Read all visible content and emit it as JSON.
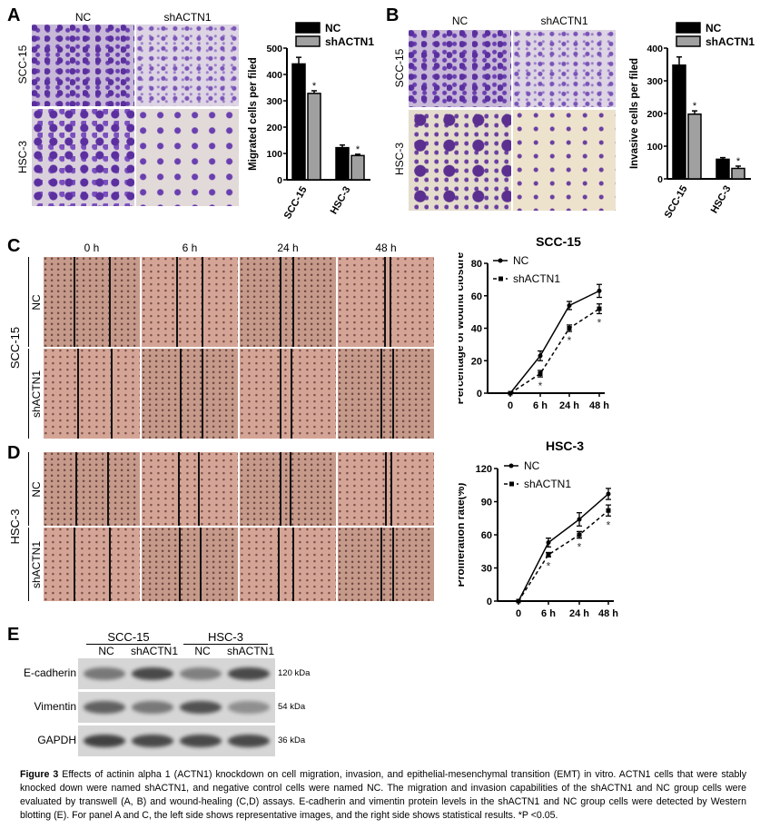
{
  "panels": {
    "A": "A",
    "B": "B",
    "C": "C",
    "D": "D",
    "E": "E"
  },
  "transwell": {
    "col_headers": [
      "NC",
      "shACTN1"
    ],
    "row_labels": [
      "SCC-15",
      "HSC-3"
    ]
  },
  "wound": {
    "time_headers": [
      "0 h",
      "6 h",
      "24 h",
      "48 h"
    ],
    "group_labels": [
      "NC",
      "shACTN1"
    ],
    "cell_lines": [
      "SCC-15",
      "HSC-3"
    ]
  },
  "blot": {
    "cell_lines": [
      "SCC-15",
      "HSC-3"
    ],
    "lanes": [
      "NC",
      "shACTN1",
      "NC",
      "shACTN1"
    ],
    "proteins": [
      {
        "name": "E-cadherin",
        "size": "120 kDa",
        "intensity": [
          0.6,
          0.9,
          0.55,
          0.9
        ]
      },
      {
        "name": "Vimentin",
        "size": "54 kDa",
        "intensity": [
          0.75,
          0.6,
          0.85,
          0.45
        ]
      },
      {
        "name": "GAPDH",
        "size": "36 kDa",
        "intensity": [
          0.95,
          0.9,
          0.9,
          0.9
        ]
      }
    ]
  },
  "caption": {
    "fig": "Figure 3",
    "text": " Effects of actinin alpha 1 (ACTN1) knockdown on cell migration, invasion, and epithelial-mesenchymal transition (EMT) in vitro. ACTN1 cells that were stably knocked down were named shACTN1, and negative control cells were named NC. The migration and invasion capabilities of the shACTN1 and NC group cells were evaluated by transwell (A, B) and wound-healing (C,D) assays. E-cadherin and vimentin protein levels in the shACTN1 and NC group cells were detected by Western blotting (E). For panel A and C, the left side shows representative images, and the right side shows statistical results. *P <0.05."
  },
  "chart_data": [
    {
      "id": "A",
      "type": "bar",
      "ylabel": "Migrated cells per filed",
      "ylim": [
        0,
        500
      ],
      "yticks": [
        0,
        100,
        200,
        300,
        400,
        500
      ],
      "categories": [
        "SCC-15",
        "HSC-3"
      ],
      "series": [
        {
          "name": "NC",
          "color": "#000000",
          "values": [
            440,
            122
          ],
          "err": [
            25,
            10
          ]
        },
        {
          "name": "shACTN1",
          "color": "#a0a0a0",
          "values": [
            328,
            92
          ],
          "err": [
            10,
            5
          ]
        }
      ],
      "annotations": [
        "",
        "*"
      ]
    },
    {
      "id": "B",
      "type": "bar",
      "ylabel": "Invasive cells per filed",
      "ylim": [
        0,
        400
      ],
      "yticks": [
        0,
        100,
        200,
        300,
        400
      ],
      "categories": [
        "SCC-15",
        "HSC-3"
      ],
      "series": [
        {
          "name": "NC",
          "color": "#000000",
          "values": [
            348,
            60
          ],
          "err": [
            25,
            5
          ]
        },
        {
          "name": "shACTN1",
          "color": "#a0a0a0",
          "values": [
            198,
            32
          ],
          "err": [
            10,
            7
          ]
        }
      ],
      "annotations": [
        "",
        "*"
      ]
    },
    {
      "id": "C",
      "type": "line",
      "title": "SCC-15",
      "ylabel": "Percentage of wound closure",
      "ylim": [
        0,
        80
      ],
      "yticks": [
        0,
        20,
        40,
        60,
        80
      ],
      "x": [
        "0",
        "6 h",
        "24 h",
        "48 h"
      ],
      "series": [
        {
          "name": "NC",
          "dash": false,
          "values": [
            0,
            23,
            54,
            63
          ],
          "err": [
            0,
            3,
            2.5,
            4
          ]
        },
        {
          "name": "shACTN1",
          "dash": true,
          "values": [
            0,
            12,
            40,
            52
          ],
          "err": [
            0,
            2,
            2,
            3
          ]
        }
      ],
      "sig": "*"
    },
    {
      "id": "D",
      "type": "line",
      "title": "HSC-3",
      "ylabel": "Proliferation rate(%)",
      "ylim": [
        0,
        120
      ],
      "yticks": [
        0,
        30,
        60,
        90,
        120
      ],
      "x": [
        "0",
        "6 h",
        "24 h",
        "48 h"
      ],
      "series": [
        {
          "name": "NC",
          "dash": false,
          "values": [
            0,
            53,
            74,
            97
          ],
          "err": [
            0,
            4,
            6,
            5
          ]
        },
        {
          "name": "shACTN1",
          "dash": true,
          "values": [
            0,
            42,
            60,
            82
          ],
          "err": [
            0,
            2,
            3,
            5
          ]
        }
      ],
      "sig": "*"
    }
  ]
}
